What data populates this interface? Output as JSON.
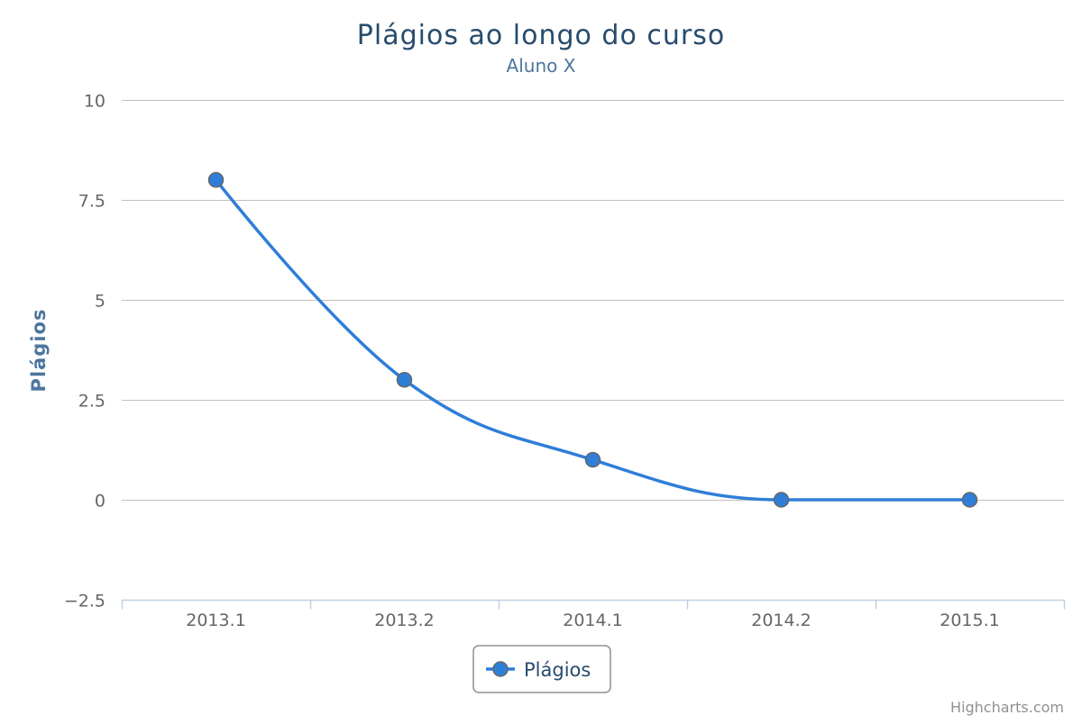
{
  "chart_data": {
    "type": "line",
    "title": "Plágios ao longo do curso",
    "subtitle": "Aluno X",
    "xlabel": "",
    "ylabel": "Plágios",
    "categories": [
      "2013.1",
      "2013.2",
      "2014.1",
      "2014.2",
      "2015.1"
    ],
    "series": [
      {
        "name": "Plágios",
        "values": [
          8,
          3,
          1,
          0,
          0
        ],
        "color": "#2f7ed8"
      }
    ],
    "ylim": [
      -2.5,
      10
    ],
    "yticks": [
      -2.5,
      0,
      2.5,
      5,
      7.5,
      10
    ],
    "ytick_labels": [
      "−2.5",
      "0",
      "2.5",
      "5",
      "7.5",
      "10"
    ],
    "grid": true,
    "smooth": true,
    "legend": {
      "placement": "bottom-center"
    }
  },
  "credits": "Highcharts.com"
}
